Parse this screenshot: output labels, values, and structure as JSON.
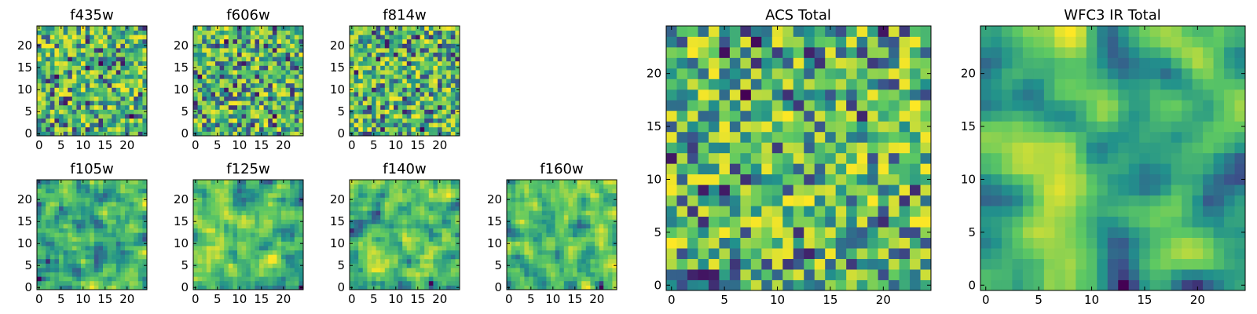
{
  "figure": {
    "colormap": [
      "#440154",
      "#3b528b",
      "#21918c",
      "#5ec962",
      "#fde725"
    ],
    "background": "#ffffff"
  },
  "chart_data": [
    {
      "type": "heatmap",
      "title": "f435w",
      "grid_size": 25,
      "xlim": [
        0,
        24
      ],
      "ylim": [
        0,
        24
      ],
      "xticks": [
        0,
        5,
        10,
        15,
        20
      ],
      "yticks": [
        0,
        5,
        10,
        15,
        20
      ],
      "smoothness": 0,
      "seed": 11,
      "value_range": [
        0,
        1
      ]
    },
    {
      "type": "heatmap",
      "title": "f606w",
      "grid_size": 25,
      "xlim": [
        0,
        24
      ],
      "ylim": [
        0,
        24
      ],
      "xticks": [
        0,
        5,
        10,
        15,
        20
      ],
      "yticks": [
        0,
        5,
        10,
        15,
        20
      ],
      "smoothness": 0,
      "seed": 23,
      "value_range": [
        0,
        1
      ]
    },
    {
      "type": "heatmap",
      "title": "f814w",
      "grid_size": 25,
      "xlim": [
        0,
        24
      ],
      "ylim": [
        0,
        24
      ],
      "xticks": [
        0,
        5,
        10,
        15,
        20
      ],
      "yticks": [
        0,
        5,
        10,
        15,
        20
      ],
      "smoothness": 0,
      "seed": 37,
      "value_range": [
        0,
        1
      ]
    },
    {
      "type": "heatmap",
      "title": "f105w",
      "grid_size": 25,
      "xlim": [
        0,
        24
      ],
      "ylim": [
        0,
        24
      ],
      "xticks": [
        0,
        5,
        10,
        15,
        20
      ],
      "yticks": [
        0,
        5,
        10,
        15,
        20
      ],
      "smoothness": 1,
      "seed": 41,
      "value_range": [
        0,
        1
      ]
    },
    {
      "type": "heatmap",
      "title": "f125w",
      "grid_size": 25,
      "xlim": [
        0,
        24
      ],
      "ylim": [
        0,
        24
      ],
      "xticks": [
        0,
        5,
        10,
        15,
        20
      ],
      "yticks": [
        0,
        5,
        10,
        15,
        20
      ],
      "smoothness": 1,
      "seed": 53,
      "value_range": [
        0,
        1
      ]
    },
    {
      "type": "heatmap",
      "title": "f140w",
      "grid_size": 25,
      "xlim": [
        0,
        24
      ],
      "ylim": [
        0,
        24
      ],
      "xticks": [
        0,
        5,
        10,
        15,
        20
      ],
      "yticks": [
        0,
        5,
        10,
        15,
        20
      ],
      "smoothness": 1,
      "seed": 67,
      "value_range": [
        0,
        1
      ]
    },
    {
      "type": "heatmap",
      "title": "f160w",
      "grid_size": 25,
      "xlim": [
        0,
        24
      ],
      "ylim": [
        0,
        24
      ],
      "xticks": [
        0,
        5,
        10,
        15,
        20
      ],
      "yticks": [
        0,
        5,
        10,
        15,
        20
      ],
      "smoothness": 1,
      "seed": 79,
      "value_range": [
        0,
        1
      ]
    },
    {
      "type": "heatmap",
      "title": "ACS Total",
      "grid_size": 25,
      "xlim": [
        0,
        24
      ],
      "ylim": [
        0,
        24
      ],
      "xticks": [
        0,
        5,
        10,
        15,
        20
      ],
      "yticks": [
        0,
        5,
        10,
        15,
        20
      ],
      "smoothness": 0,
      "seed": 97,
      "value_range": [
        0,
        1
      ]
    },
    {
      "type": "heatmap",
      "title": "WFC3 IR Total",
      "grid_size": 25,
      "xlim": [
        0,
        24
      ],
      "ylim": [
        0,
        24
      ],
      "xticks": [
        0,
        5,
        10,
        15,
        20
      ],
      "yticks": [
        0,
        5,
        10,
        15,
        20
      ],
      "smoothness": 2,
      "seed": 101,
      "value_range": [
        0,
        1
      ]
    }
  ]
}
